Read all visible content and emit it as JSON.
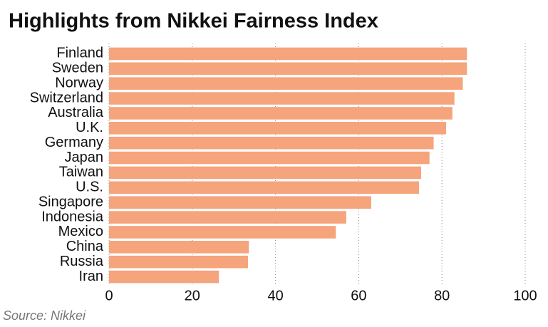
{
  "chart_data": {
    "type": "hbar",
    "title": "Highlights from Nikkei Fairness Index",
    "source": "Source: Nikkei",
    "categories": [
      "Finland",
      "Sweden",
      "Norway",
      "Switzerland",
      "Australia",
      "U.K.",
      "Germany",
      "Japan",
      "Taiwan",
      "U.S.",
      "Singapore",
      "Indonesia",
      "Mexico",
      "China",
      "Russia",
      "Iran"
    ],
    "values": [
      86,
      86,
      85,
      83,
      82.5,
      81,
      78,
      77,
      75,
      74.5,
      63,
      57,
      54.5,
      33.6,
      33.4,
      26.4
    ],
    "color": "#f5a47c",
    "xlim": [
      0,
      100
    ],
    "xticks": [
      0,
      20,
      40,
      60,
      80,
      100
    ],
    "grid": true
  }
}
